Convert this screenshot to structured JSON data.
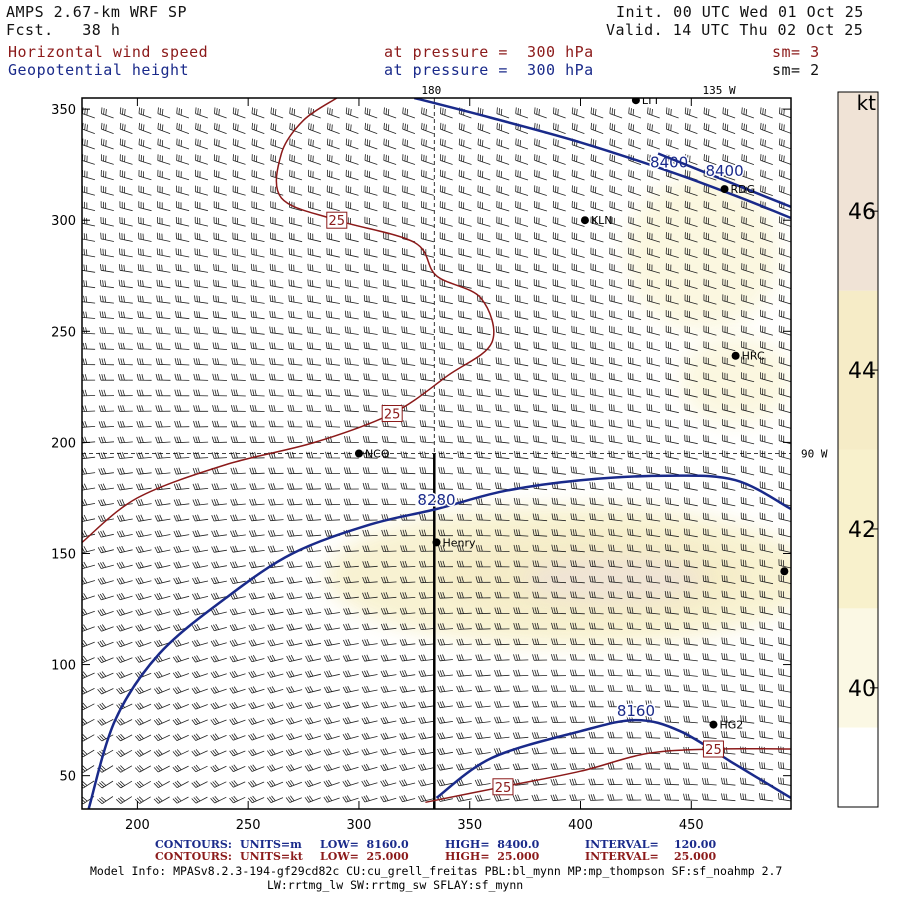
{
  "header": {
    "model": "AMPS 2.67-km WRF SP",
    "fcst": "Fcst.   38 h",
    "init": "Init. 00 UTC Wed 01 Oct 25",
    "valid": "Valid. 14 UTC Thu 02 Oct 25",
    "field1": "Horizontal wind speed",
    "field2": "Geopotential height",
    "pressure1": "at pressure =  300 hPa",
    "pressure2": "at pressure =  300 hPa",
    "sm1": "sm= 3",
    "sm2": "sm= 2"
  },
  "footer": {
    "row1": {
      "label": "CONTOURS:",
      "units": "UNITS=m",
      "low": "LOW=  8160.0",
      "high": "HIGH=  8400.0",
      "interval": "INTERVAL=    120.00"
    },
    "row2": {
      "label": "CONTOURS:",
      "units": "UNITS=kt",
      "low": "LOW=  25.000",
      "high": "HIGH=  25.000",
      "interval": "INTERVAL=    25.000"
    },
    "model_info": "Model Info: MPASv8.2.3-194-gf29cd82c CU:cu_grell_freitas PBL:bl_mynn MP:mp_thompson SF:sf_noahmp 2.7",
    "model_info2": "LW:rrtmg_lw SW:rrtmg_sw SFLAY:sf_mynn"
  },
  "colors": {
    "red_contour": "#8b1a1a",
    "blue_contour": "#1a2a8a",
    "barb": "#222222"
  },
  "chart_data": {
    "type": "contour",
    "title": "Horizontal wind speed (kt) and Geopotential height (m) at 300 hPa",
    "xlim": [
      175,
      495
    ],
    "ylim": [
      35,
      355
    ],
    "xticks": [
      200,
      250,
      300,
      350,
      400,
      450
    ],
    "yticks": [
      50,
      100,
      150,
      200,
      250,
      300,
      350
    ],
    "colorbar": {
      "label": "kt",
      "ticks": [
        40,
        42,
        44,
        46
      ],
      "range": [
        38.5,
        47.5
      ]
    },
    "meridian_labels": [
      {
        "text": "180",
        "x": 334,
        "where": "top"
      },
      {
        "text": "135 W",
        "x": 458,
        "where": "top"
      },
      {
        "text": "90 W",
        "y": 195,
        "where": "right"
      }
    ],
    "stations": [
      {
        "name": "KLN",
        "x": 402,
        "y": 300
      },
      {
        "name": "RDG",
        "x": 465,
        "y": 314
      },
      {
        "name": "HRC",
        "x": 470,
        "y": 239
      },
      {
        "name": "NCO",
        "x": 300,
        "y": 195
      },
      {
        "name": "Henry",
        "x": 335,
        "y": 155
      },
      {
        "name": "HG2",
        "x": 460,
        "y": 73
      },
      {
        "name": "LTT",
        "x": 425,
        "y": 354
      },
      {
        "name": "",
        "x": 492,
        "y": 142
      }
    ],
    "height_contours": [
      {
        "label": "8400",
        "points": [
          [
            325,
            355
          ],
          [
            360,
            346
          ],
          [
            400,
            335
          ],
          [
            440,
            322
          ],
          [
            470,
            311
          ],
          [
            495,
            301
          ]
        ]
      },
      {
        "label": "8400",
        "points": [
          [
            435,
            330
          ],
          [
            465,
            318
          ],
          [
            495,
            306
          ]
        ]
      },
      {
        "label": "8280",
        "points": [
          [
            178,
            35
          ],
          [
            190,
            75
          ],
          [
            210,
            105
          ],
          [
            240,
            130
          ],
          [
            270,
            150
          ],
          [
            305,
            163
          ],
          [
            335,
            170
          ],
          [
            365,
            178
          ],
          [
            400,
            183
          ],
          [
            440,
            185
          ],
          [
            470,
            183
          ],
          [
            495,
            170
          ]
        ]
      },
      {
        "label": "8160",
        "points": [
          [
            335,
            40
          ],
          [
            360,
            58
          ],
          [
            400,
            70
          ],
          [
            425,
            75
          ],
          [
            445,
            70
          ],
          [
            470,
            55
          ],
          [
            495,
            40
          ]
        ]
      }
    ],
    "speed_contours": [
      {
        "label": "25",
        "points": [
          [
            175,
            155
          ],
          [
            200,
            175
          ],
          [
            240,
            190
          ],
          [
            280,
            200
          ],
          [
            315,
            213
          ],
          [
            340,
            230
          ],
          [
            360,
            245
          ],
          [
            355,
            265
          ],
          [
            335,
            275
          ],
          [
            325,
            290
          ],
          [
            290,
            300
          ],
          [
            265,
            310
          ],
          [
            265,
            330
          ],
          [
            275,
            345
          ],
          [
            290,
            355
          ]
        ]
      },
      {
        "label": "25",
        "points": [
          [
            330,
            38
          ],
          [
            365,
            45
          ],
          [
            400,
            52
          ],
          [
            430,
            60
          ],
          [
            460,
            62
          ],
          [
            495,
            62
          ]
        ]
      }
    ],
    "shaded_regions": [
      {
        "level": 42,
        "center": [
          395,
          140
        ],
        "extent": [
          110,
          32
        ]
      },
      {
        "level": 44,
        "center": [
          405,
          140
        ],
        "extent": [
          70,
          20
        ]
      },
      {
        "level": 46,
        "center": [
          415,
          138
        ],
        "extent": [
          40,
          10
        ]
      },
      {
        "level": 41,
        "center": [
          455,
          285
        ],
        "extent": [
          35,
          35
        ]
      },
      {
        "level": 41,
        "center": [
          470,
          228
        ],
        "extent": [
          25,
          20
        ]
      }
    ]
  }
}
